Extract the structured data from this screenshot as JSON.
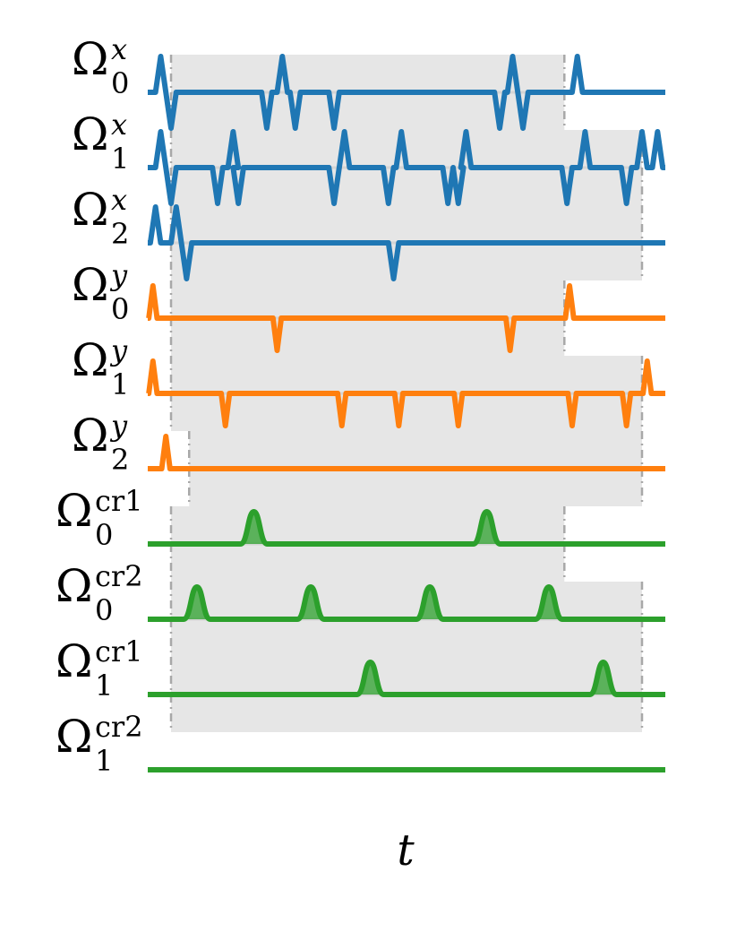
{
  "chart_data": {
    "type": "line",
    "xlabel": "t",
    "ylabel": "",
    "title": "",
    "grid": false,
    "x_range": [
      0,
      100
    ],
    "colors": {
      "x": "#1f77b4",
      "y": "#ff7f0e",
      "cr": "#2ca02c",
      "band": "#e6e6e6",
      "band_edge": "#d4d4d4",
      "divider": "#a8a8a8"
    },
    "rows": [
      {
        "symbol": "Ω",
        "superscript": "x",
        "subscript": "0",
        "channel": "x",
        "pulses": [
          {
            "t": 2.5,
            "dir": 1
          },
          {
            "t": 4.5,
            "dir": -1
          },
          {
            "t": 23,
            "dir": -1
          },
          {
            "t": 26,
            "dir": 1
          },
          {
            "t": 28.5,
            "dir": -1
          },
          {
            "t": 36,
            "dir": -1
          },
          {
            "t": 68,
            "dir": -1
          },
          {
            "t": 70.5,
            "dir": 1
          },
          {
            "t": 72.5,
            "dir": -1
          },
          {
            "t": 83,
            "dir": 1
          }
        ]
      },
      {
        "symbol": "Ω",
        "superscript": "x",
        "subscript": "1",
        "channel": "x",
        "pulses": [
          {
            "t": 2.5,
            "dir": 1
          },
          {
            "t": 4.5,
            "dir": -1
          },
          {
            "t": 13.5,
            "dir": -1
          },
          {
            "t": 16.5,
            "dir": 1
          },
          {
            "t": 17.5,
            "dir": -1
          },
          {
            "t": 36,
            "dir": -1
          },
          {
            "t": 38,
            "dir": 1
          },
          {
            "t": 46.5,
            "dir": -1
          },
          {
            "t": 49,
            "dir": 1
          },
          {
            "t": 58,
            "dir": -1
          },
          {
            "t": 60,
            "dir": -1
          },
          {
            "t": 61.5,
            "dir": 1
          },
          {
            "t": 81,
            "dir": -1
          },
          {
            "t": 84.5,
            "dir": 1
          },
          {
            "t": 92.5,
            "dir": -1
          },
          {
            "t": 95.5,
            "dir": 1
          },
          {
            "t": 98.5,
            "dir": 1
          }
        ]
      },
      {
        "symbol": "Ω",
        "superscript": "x",
        "subscript": "2",
        "channel": "x",
        "pulses": [
          {
            "t": 1.5,
            "dir": 1
          },
          {
            "t": 5.5,
            "dir": 1
          },
          {
            "t": 7.5,
            "dir": -1
          },
          {
            "t": 47.5,
            "dir": -1
          }
        ]
      },
      {
        "symbol": "Ω",
        "superscript": "y",
        "subscript": "0",
        "channel": "y",
        "pulses": [
          {
            "t": 1,
            "dir": 1
          },
          {
            "t": 25,
            "dir": -1
          },
          {
            "t": 70,
            "dir": -1
          },
          {
            "t": 81.5,
            "dir": 1
          }
        ]
      },
      {
        "symbol": "Ω",
        "superscript": "y",
        "subscript": "1",
        "channel": "y",
        "pulses": [
          {
            "t": 1,
            "dir": 1
          },
          {
            "t": 15,
            "dir": -1
          },
          {
            "t": 37.5,
            "dir": -1
          },
          {
            "t": 48.5,
            "dir": -1
          },
          {
            "t": 60,
            "dir": -1
          },
          {
            "t": 82,
            "dir": -1
          },
          {
            "t": 92.5,
            "dir": -1
          },
          {
            "t": 96.5,
            "dir": 1
          }
        ]
      },
      {
        "symbol": "Ω",
        "superscript": "y",
        "subscript": "2",
        "channel": "y",
        "pulses": [
          {
            "t": 3.5,
            "dir": 1
          }
        ]
      },
      {
        "symbol": "Ω",
        "superscript": "cr1",
        "subscript": "0",
        "channel": "cr",
        "pulses": [
          {
            "t": 20.5,
            "dir": 1
          },
          {
            "t": 65.5,
            "dir": 1
          }
        ]
      },
      {
        "symbol": "Ω",
        "superscript": "cr2",
        "subscript": "0",
        "channel": "cr",
        "pulses": [
          {
            "t": 9.5,
            "dir": 1
          },
          {
            "t": 31.5,
            "dir": 1
          },
          {
            "t": 54.5,
            "dir": 1
          },
          {
            "t": 77.5,
            "dir": 1
          }
        ]
      },
      {
        "symbol": "Ω",
        "superscript": "cr1",
        "subscript": "1",
        "channel": "cr",
        "pulses": [
          {
            "t": 43,
            "dir": 1
          },
          {
            "t": 88,
            "dir": 1
          }
        ]
      },
      {
        "symbol": "Ω",
        "superscript": "cr2",
        "subscript": "1",
        "channel": "cr",
        "pulses": []
      }
    ],
    "bands": [
      {
        "between_rows": [
          0,
          1
        ],
        "start": 4.5,
        "end": 80.5
      },
      {
        "between_rows": [
          1,
          2
        ],
        "start": 4.5,
        "end": 95.5
      },
      {
        "between_rows": [
          2,
          3
        ],
        "start": 4.5,
        "end": 95.5
      },
      {
        "between_rows": [
          3,
          4
        ],
        "start": 4.5,
        "end": 80.5
      },
      {
        "between_rows": [
          4,
          5
        ],
        "start": 4.5,
        "end": 95.5
      },
      {
        "between_rows": [
          5,
          6
        ],
        "start": 8,
        "end": 95.5
      },
      {
        "between_rows": [
          6,
          7
        ],
        "start": 4.5,
        "end": 80.5
      },
      {
        "between_rows": [
          7,
          8
        ],
        "start": 4.5,
        "end": 95.5
      },
      {
        "between_rows": [
          8,
          9
        ],
        "start": 4.5,
        "end": 95.5
      }
    ]
  }
}
